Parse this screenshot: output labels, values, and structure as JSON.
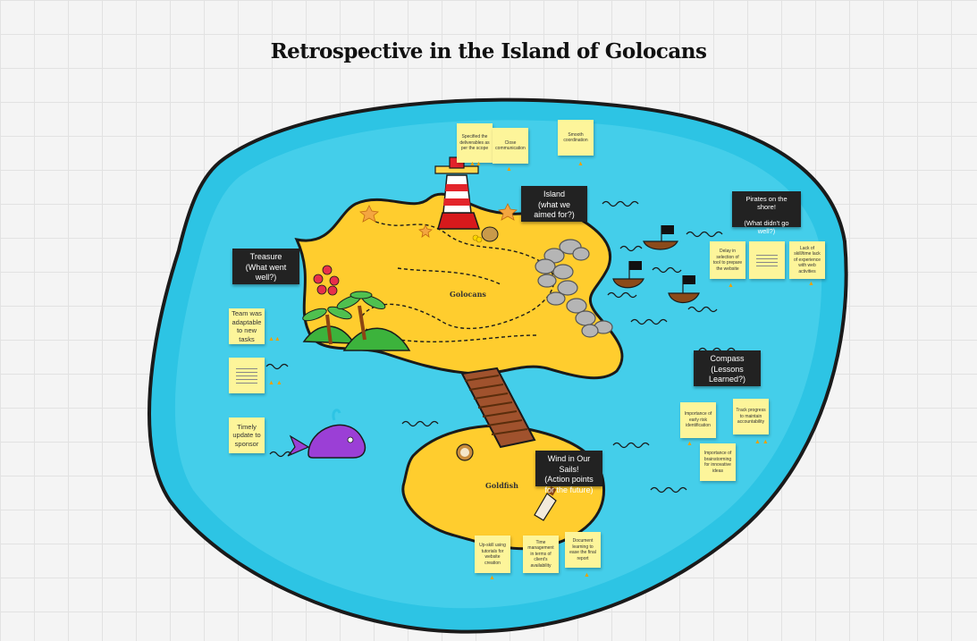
{
  "board": {
    "title": "Retrospective in the Island of Golocans"
  },
  "map": {
    "main_island_name": "Golocans",
    "small_island_name": "Goldfish",
    "colors": {
      "sea": "#2dc4e4",
      "sea_light": "#58d7ee",
      "sand": "#ffcd2e",
      "outline": "#1a1a1a",
      "note": "#fdf59a",
      "label": "#222222"
    }
  },
  "sections": {
    "island": "Island\n(what we aimed for?)",
    "treasure": "Treasure\n(What went well?)",
    "pirates": "Pirates on the shore!\n\n(What didn't go well?)",
    "compass": "Compass\n(Lessons Learned?)",
    "wind": "Wind in Our Sails!\n(Action points for the future)"
  },
  "notes": {
    "island": [
      {
        "text": "Specified the deliverables as per the scope"
      },
      {
        "text": "Close communication"
      },
      {
        "text": "Smooth coordination"
      }
    ],
    "treasure": [
      {
        "text": "Team was adaptable to new tasks"
      },
      {
        "text": ""
      },
      {
        "text": "Timely update to sponsor"
      }
    ],
    "pirates": [
      {
        "text": "Delay in selection of tool to prepare the website"
      },
      {
        "text": ""
      },
      {
        "text": "Lack of skill/time lack of experience with web activities"
      }
    ],
    "compass": [
      {
        "text": "Importance of early risk identification"
      },
      {
        "text": "Track progress to maintain accountability"
      },
      {
        "text": "Importance of brainstorming for innovative ideas"
      }
    ],
    "wind": [
      {
        "text": "Up-skill using tutorials for website creation"
      },
      {
        "text": "Time management in terms of client's availability"
      },
      {
        "text": "Document learning to ease the final report"
      }
    ]
  }
}
